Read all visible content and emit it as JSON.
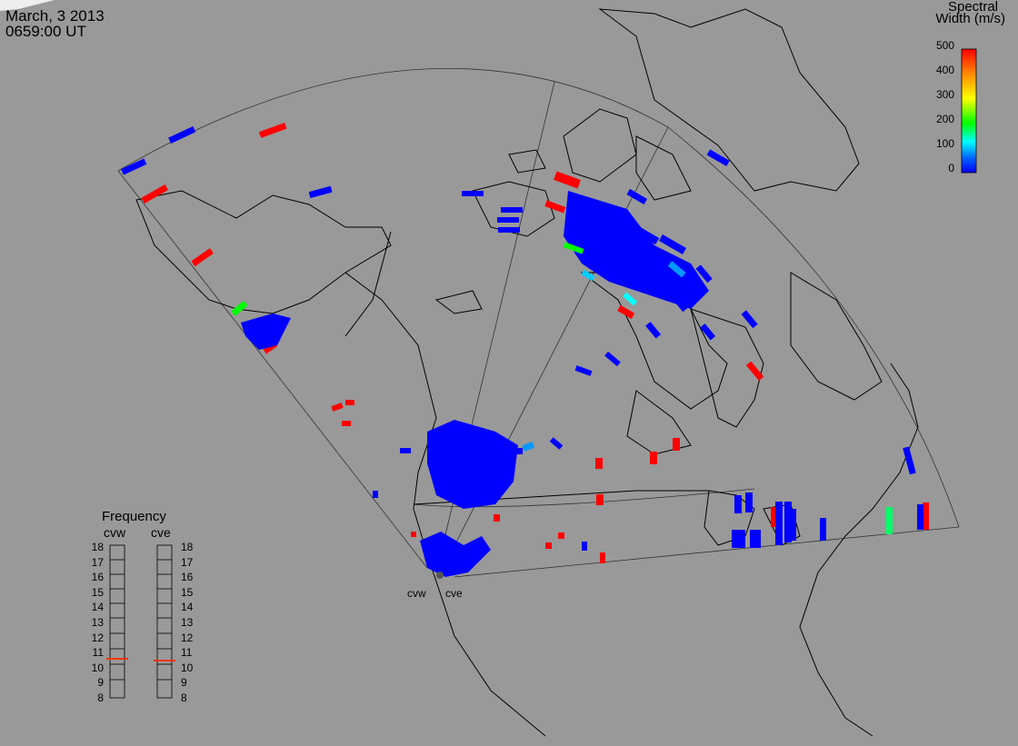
{
  "header": {
    "date": "March, 3 2013",
    "time": "0659:00 UT"
  },
  "colorbar": {
    "title_line1": "Spectral",
    "title_line2": "Width (m/s)",
    "ticks": [
      "500",
      "400",
      "300",
      "200",
      "100",
      "0"
    ],
    "colors": [
      "#ff0000",
      "#ff9900",
      "#ffff00",
      "#00ff00",
      "#00ffff",
      "#0066ff",
      "#0000ff"
    ]
  },
  "frequency_panel": {
    "title": "Frequency",
    "radars": [
      "cvw",
      "cve"
    ],
    "scale": [
      "18",
      "17",
      "16",
      "15",
      "14",
      "13",
      "12",
      "11",
      "10",
      "9",
      "8"
    ],
    "cvw_freq_mhz": 10.6,
    "cve_freq_mhz": 10.6,
    "marker_color": "#ff3300"
  },
  "sites": [
    {
      "label": "cvw"
    },
    {
      "label": "cve"
    }
  ],
  "colors": {
    "background": "#999999",
    "land": "#999999",
    "coast": "#000000",
    "low_width": "#0000ff",
    "high_width": "#ff0000"
  }
}
